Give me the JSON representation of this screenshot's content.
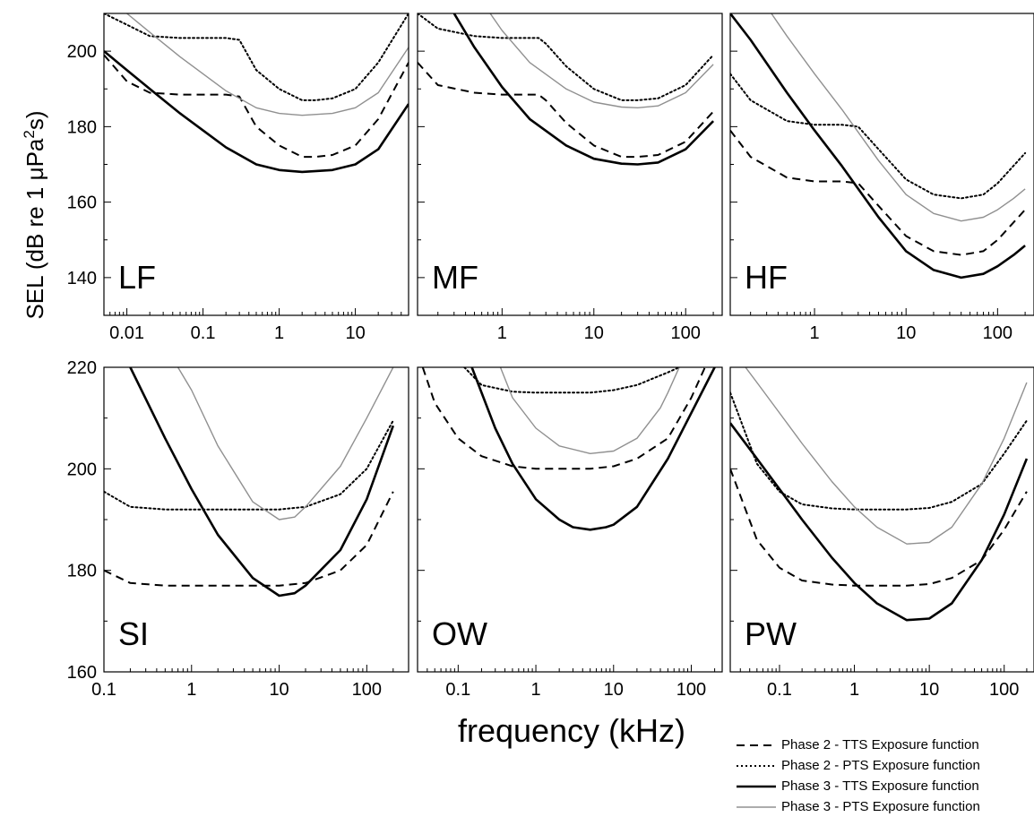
{
  "figure": {
    "xlabel": "frequency (kHz)",
    "ylabel_main": "SEL (dB re 1 ",
    "ylabel_mu": "μPa",
    "ylabel_sup": "2",
    "ylabel_end": "s)"
  },
  "legend": [
    {
      "label": "Phase 2 - TTS Exposure function",
      "style": "dashed",
      "color": "#000000"
    },
    {
      "label": "Phase 2 - PTS Exposure function",
      "style": "dotted",
      "color": "#000000"
    },
    {
      "label": "Phase 3 - TTS Exposure function",
      "style": "solid",
      "color": "#000000"
    },
    {
      "label": "Phase 3 - PTS Exposure function",
      "style": "solid-thin",
      "color": "#909090"
    }
  ],
  "chart_data": [
    {
      "type": "line",
      "panel": "LF",
      "xscale": "log",
      "xlim": [
        0.005,
        50
      ],
      "ylim": [
        130,
        210
      ],
      "xticks": [
        "0.01",
        "0.1",
        "1",
        "10"
      ],
      "yticks": [
        "140",
        "160",
        "180",
        "200"
      ],
      "series": [
        {
          "name": "Phase 2 - TTS Exposure function",
          "x": [
            0.005,
            0.01,
            0.02,
            0.05,
            0.1,
            0.2,
            0.3,
            0.5,
            1,
            2,
            3,
            5,
            10,
            20,
            50
          ],
          "y": [
            199,
            192,
            189,
            188.5,
            188.5,
            188.5,
            188,
            180,
            175,
            172,
            172,
            172.5,
            175,
            182,
            197
          ]
        },
        {
          "name": "Phase 2 - PTS Exposure function",
          "x": [
            0.005,
            0.01,
            0.02,
            0.05,
            0.1,
            0.2,
            0.3,
            0.5,
            1,
            2,
            3,
            5,
            10,
            20,
            50
          ],
          "y": [
            210,
            207,
            204,
            203.5,
            203.5,
            203.5,
            203,
            195,
            190,
            187,
            187,
            187.5,
            190,
            197,
            210
          ]
        },
        {
          "name": "Phase 3 - TTS Exposure function",
          "x": [
            0.005,
            0.01,
            0.02,
            0.05,
            0.1,
            0.2,
            0.5,
            1,
            2,
            5,
            10,
            20,
            50
          ],
          "y": [
            200,
            195,
            190,
            183.5,
            179,
            174.5,
            170,
            168.5,
            168,
            168.5,
            170,
            174,
            186
          ]
        },
        {
          "name": "Phase 3 - PTS Exposure function",
          "x": [
            0.005,
            0.01,
            0.02,
            0.05,
            0.1,
            0.2,
            0.5,
            1,
            2,
            5,
            10,
            20,
            50
          ],
          "y": [
            215,
            210,
            205,
            198.5,
            194,
            189.5,
            185,
            183.5,
            183,
            183.5,
            185,
            189,
            201
          ]
        }
      ]
    },
    {
      "type": "line",
      "panel": "MF",
      "xscale": "log",
      "xlim": [
        0.12,
        250
      ],
      "ylim": [
        130,
        210
      ],
      "xticks": [
        "1",
        "10",
        "100"
      ],
      "yticks": [
        "140",
        "160",
        "180",
        "200"
      ],
      "series": [
        {
          "name": "Phase 2 - TTS Exposure function",
          "x": [
            0.12,
            0.2,
            0.5,
            1,
            2,
            2.5,
            3,
            5,
            10,
            20,
            30,
            50,
            100,
            200
          ],
          "y": [
            197,
            191,
            189,
            188.5,
            188.5,
            188.5,
            187,
            181,
            175,
            172,
            172,
            172.5,
            176,
            184
          ]
        },
        {
          "name": "Phase 2 - PTS Exposure function",
          "x": [
            0.12,
            0.2,
            0.5,
            1,
            2,
            2.5,
            3,
            5,
            10,
            20,
            30,
            50,
            100,
            200
          ],
          "y": [
            210,
            206,
            204,
            203.5,
            203.5,
            203.5,
            202,
            196,
            190,
            187,
            187,
            187.5,
            191,
            199
          ]
        },
        {
          "name": "Phase 3 - TTS Exposure function",
          "x": [
            0.3,
            0.5,
            1,
            2,
            5,
            10,
            20,
            30,
            50,
            100,
            200
          ],
          "y": [
            210,
            201,
            190.5,
            182,
            175,
            171.5,
            170.2,
            170,
            170.5,
            174,
            181.5
          ]
        },
        {
          "name": "Phase 3 - PTS Exposure function",
          "x": [
            0.5,
            1,
            2,
            5,
            10,
            20,
            30,
            50,
            100,
            200
          ],
          "y": [
            216,
            205.5,
            197,
            190,
            186.5,
            185.2,
            185,
            185.5,
            189,
            196.5
          ]
        }
      ]
    },
    {
      "type": "line",
      "panel": "HF",
      "xscale": "log",
      "xlim": [
        0.12,
        250
      ],
      "ylim": [
        130,
        210
      ],
      "xticks": [
        "1",
        "10",
        "100"
      ],
      "yticks": [
        "140",
        "160",
        "180",
        "200"
      ],
      "series": [
        {
          "name": "Phase 2 - TTS Exposure function",
          "x": [
            0.12,
            0.2,
            0.5,
            1,
            2,
            3,
            5,
            10,
            20,
            40,
            70,
            100,
            200
          ],
          "y": [
            179,
            172,
            166.5,
            165.5,
            165.5,
            165,
            159,
            151,
            147,
            146,
            147,
            150,
            158
          ]
        },
        {
          "name": "Phase 2 - PTS Exposure function",
          "x": [
            0.12,
            0.2,
            0.5,
            1,
            2,
            3,
            5,
            10,
            20,
            40,
            70,
            100,
            200
          ],
          "y": [
            194,
            187,
            181.5,
            180.5,
            180.5,
            180,
            174,
            166,
            162,
            161,
            162,
            165,
            173
          ]
        },
        {
          "name": "Phase 3 - TTS Exposure function",
          "x": [
            0.12,
            0.2,
            0.5,
            1,
            2,
            5,
            10,
            20,
            40,
            70,
            100,
            150,
            200
          ],
          "y": [
            210,
            203,
            189,
            179,
            169.5,
            156,
            147,
            142,
            140,
            141,
            143,
            146,
            148.5
          ]
        },
        {
          "name": "Phase 3 - PTS Exposure function",
          "x": [
            0.2,
            0.5,
            1,
            2,
            5,
            10,
            20,
            40,
            70,
            100,
            150,
            200
          ],
          "y": [
            218,
            204,
            194,
            184.5,
            171,
            162,
            157,
            155,
            156,
            158,
            161,
            163.5
          ]
        }
      ]
    },
    {
      "type": "line",
      "panel": "SI",
      "xscale": "log",
      "xlim": [
        0.1,
        300
      ],
      "ylim": [
        160,
        220
      ],
      "xticks": [
        "0.1",
        "1",
        "10",
        "100"
      ],
      "yticks": [
        "160",
        "180",
        "200",
        "220"
      ],
      "series": [
        {
          "name": "Phase 2 - TTS Exposure function",
          "x": [
            0.1,
            0.2,
            0.5,
            1,
            3,
            10,
            20,
            50,
            100,
            200
          ],
          "y": [
            180,
            177.5,
            177,
            177,
            177,
            177,
            177.5,
            180,
            185,
            195.5
          ]
        },
        {
          "name": "Phase 2 - PTS Exposure function",
          "x": [
            0.1,
            0.2,
            0.5,
            1,
            3,
            10,
            20,
            50,
            100,
            200
          ],
          "y": [
            195.5,
            192.5,
            192,
            192,
            192,
            192,
            192.5,
            195,
            200,
            209.5
          ]
        },
        {
          "name": "Phase 3 - TTS Exposure function",
          "x": [
            0.2,
            0.5,
            1,
            2,
            5,
            10,
            15,
            20,
            50,
            100,
            200
          ],
          "y": [
            220,
            206,
            196,
            187,
            178.5,
            175,
            175.5,
            177,
            184,
            194,
            208.5
          ]
        },
        {
          "name": "Phase 3 - PTS Exposure function",
          "x": [
            0.7,
            1,
            2,
            5,
            10,
            15,
            20,
            50,
            100,
            200
          ],
          "y": [
            220,
            215.5,
            204.5,
            193.5,
            190,
            190.5,
            192.5,
            200.5,
            210,
            220
          ]
        }
      ]
    },
    {
      "type": "line",
      "panel": "OW",
      "xscale": "log",
      "xlim": [
        0.03,
        250
      ],
      "ylim": [
        160,
        220
      ],
      "xticks": [
        "0.1",
        "1",
        "10",
        "100"
      ],
      "yticks": [
        "160",
        "180",
        "200",
        "220"
      ],
      "series": [
        {
          "name": "Phase 2 - TTS Exposure function",
          "x": [
            0.035,
            0.05,
            0.1,
            0.2,
            0.5,
            1,
            2,
            5,
            10,
            20,
            50,
            100,
            150
          ],
          "y": [
            220,
            213,
            206,
            202.5,
            200.5,
            200,
            200,
            200,
            200.5,
            202,
            206,
            214,
            220
          ]
        },
        {
          "name": "Phase 2 - PTS Exposure function",
          "x": [
            0.12,
            0.2,
            0.5,
            1,
            2,
            5,
            10,
            20,
            50,
            70
          ],
          "y": [
            220,
            216.5,
            215.2,
            215,
            215,
            215,
            215.5,
            216.5,
            219,
            220
          ]
        },
        {
          "name": "Phase 3 - TTS Exposure function",
          "x": [
            0.15,
            0.3,
            0.5,
            1,
            2,
            3,
            5,
            8,
            10,
            20,
            50,
            100,
            200
          ],
          "y": [
            220,
            208,
            201,
            194,
            190,
            188.5,
            188,
            188.5,
            189,
            192.5,
            202,
            211,
            220
          ]
        },
        {
          "name": "Phase 3 - PTS Exposure function",
          "x": [
            0.35,
            0.5,
            1,
            2,
            5,
            10,
            20,
            40,
            50,
            70
          ],
          "y": [
            220,
            214,
            208,
            204.5,
            203,
            203.5,
            206,
            212,
            215,
            220
          ]
        }
      ]
    },
    {
      "type": "line",
      "panel": "PW",
      "xscale": "log",
      "xlim": [
        0.022,
        250
      ],
      "ylim": [
        160,
        220
      ],
      "xticks": [
        "0.1",
        "1",
        "10",
        "100"
      ],
      "yticks": [
        "160",
        "180",
        "200",
        "220"
      ],
      "series": [
        {
          "name": "Phase 2 - TTS Exposure function",
          "x": [
            0.022,
            0.05,
            0.1,
            0.2,
            0.5,
            1,
            2,
            5,
            10,
            20,
            50,
            100,
            200
          ],
          "y": [
            200,
            186,
            180.5,
            178,
            177.2,
            177,
            177,
            177,
            177.3,
            178.5,
            182,
            188,
            195.5
          ]
        },
        {
          "name": "Phase 2 - PTS Exposure function",
          "x": [
            0.022,
            0.05,
            0.1,
            0.2,
            0.5,
            1,
            2,
            5,
            10,
            20,
            50,
            100,
            200
          ],
          "y": [
            215,
            201,
            195.5,
            193,
            192.2,
            192,
            192,
            192,
            192.3,
            193.5,
            197,
            203,
            209.5
          ]
        },
        {
          "name": "Phase 3 - TTS Exposure function",
          "x": [
            0.022,
            0.05,
            0.1,
            0.2,
            0.5,
            1,
            2,
            5,
            10,
            20,
            50,
            100,
            200
          ],
          "y": [
            209,
            202,
            196,
            190,
            182.5,
            177.5,
            173.5,
            170.2,
            170.5,
            173.5,
            182,
            191,
            202
          ]
        },
        {
          "name": "Phase 3 - PTS Exposure function",
          "x": [
            0.022,
            0.05,
            0.1,
            0.2,
            0.5,
            1,
            2,
            5,
            10,
            20,
            50,
            100,
            200
          ],
          "y": [
            224,
            217,
            211,
            205,
            197.5,
            192.5,
            188.5,
            185.2,
            185.5,
            188.5,
            197,
            206,
            217
          ]
        }
      ]
    }
  ]
}
